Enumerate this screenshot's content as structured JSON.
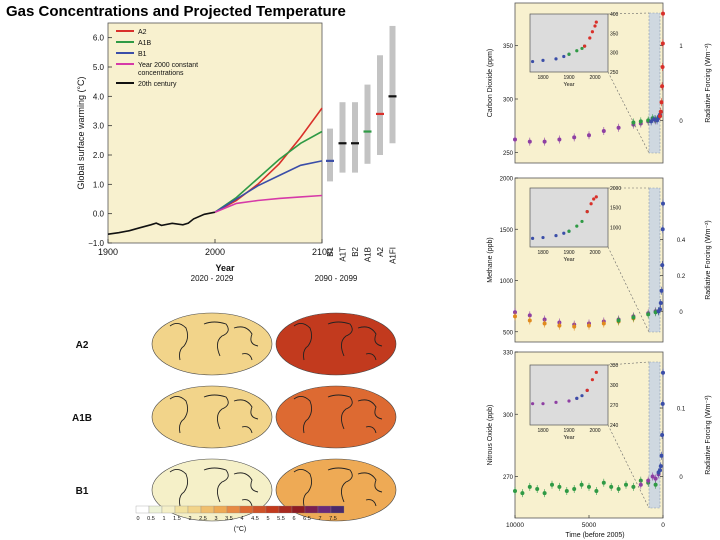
{
  "page_title": "Gas Concentrations and Projected Temperature",
  "colors": {
    "panel_bg": "#f8f1cf",
    "A2": "#d9302a",
    "A1B": "#2f9a45",
    "B1": "#3b4ea8",
    "constant": "#d63aa8",
    "century20": "#111111",
    "inset_bg": "#dcdcdc"
  },
  "chart_data": [
    {
      "type": "line",
      "name": "warming",
      "title": "",
      "xlabel": "Year",
      "ylabel": "Global surface warming (°C)",
      "xlim": [
        1900,
        2100
      ],
      "ylim": [
        -1.0,
        6.5
      ],
      "xticks": [
        1900,
        2000,
        2100
      ],
      "xtick_labels": [
        "1900",
        "2000",
        "2100"
      ],
      "yticks": [
        -1.0,
        0.0,
        1.0,
        2.0,
        3.0,
        4.0,
        5.0,
        6.0
      ],
      "ytick_labels": [
        "−1.0",
        "0.0",
        "1.0",
        "2.0",
        "3.0",
        "4.0",
        "5.0",
        "6.0"
      ],
      "legend": [
        {
          "label": "A2",
          "key": "A2"
        },
        {
          "label": "A1B",
          "key": "A1B"
        },
        {
          "label": "B1",
          "key": "B1"
        },
        {
          "label": "Year 2000 constant",
          "label2": "concentrations",
          "key": "constant"
        },
        {
          "label": "20th century",
          "key": "century20"
        }
      ],
      "series": [
        {
          "name": "20th century",
          "key": "century20",
          "x": [
            1900,
            1910,
            1920,
            1930,
            1940,
            1945,
            1950,
            1960,
            1970,
            1975,
            1980,
            1990,
            2000
          ],
          "y": [
            -0.7,
            -0.65,
            -0.58,
            -0.48,
            -0.38,
            -0.32,
            -0.4,
            -0.33,
            -0.38,
            -0.32,
            -0.18,
            -0.02,
            0.05
          ]
        },
        {
          "name": "A2",
          "key": "A2",
          "x": [
            2000,
            2020,
            2040,
            2060,
            2080,
            2100
          ],
          "y": [
            0.05,
            0.45,
            1.0,
            1.7,
            2.6,
            3.6
          ]
        },
        {
          "name": "A1B",
          "key": "A1B",
          "x": [
            2000,
            2020,
            2040,
            2060,
            2080,
            2100
          ],
          "y": [
            0.05,
            0.55,
            1.2,
            1.85,
            2.4,
            2.8
          ]
        },
        {
          "name": "B1",
          "key": "B1",
          "x": [
            2000,
            2020,
            2040,
            2060,
            2080,
            2100
          ],
          "y": [
            0.05,
            0.5,
            0.95,
            1.3,
            1.65,
            1.8
          ]
        },
        {
          "name": "Year 2000 constant concentrations",
          "key": "constant",
          "x": [
            2000,
            2020,
            2040,
            2060,
            2080,
            2100
          ],
          "y": [
            0.05,
            0.35,
            0.45,
            0.52,
            0.57,
            0.62
          ]
        }
      ],
      "range_bars": [
        {
          "label": "B1",
          "color": "B1",
          "low": 1.1,
          "high": 2.9,
          "best": 1.8
        },
        {
          "label": "A1T",
          "color": "century20",
          "low": 1.4,
          "high": 3.8,
          "best": 2.4
        },
        {
          "label": "B2",
          "color": "century20",
          "low": 1.4,
          "high": 3.8,
          "best": 2.4
        },
        {
          "label": "A1B",
          "color": "A1B",
          "low": 1.7,
          "high": 4.4,
          "best": 2.8
        },
        {
          "label": "A2",
          "color": "A2",
          "low": 2.0,
          "high": 5.4,
          "best": 3.4
        },
        {
          "label": "A1FI",
          "color": "century20",
          "low": 2.4,
          "high": 6.4,
          "best": 4.0
        }
      ]
    },
    {
      "type": "heatmap",
      "name": "maps",
      "column_labels": [
        "2020 - 2029",
        "2090 - 2099"
      ],
      "row_labels": [
        "A2",
        "A1B",
        "B1"
      ],
      "colorbar_ticks": [
        "0",
        "0.5",
        "1",
        "1.5",
        "2",
        "2.5",
        "3",
        "3.5",
        "4",
        "4.5",
        "5",
        "5.5",
        "6",
        "6.5",
        "7",
        "7.5"
      ],
      "colorbar_unit": "(°C)",
      "warming_levels": [
        [
          1.0,
          4.5
        ],
        [
          1.0,
          3.5
        ],
        [
          0.8,
          2.5
        ]
      ]
    },
    {
      "type": "scatter",
      "name": "co2",
      "ylabel": "Carbon Dioxide (ppm)",
      "ylabel_right": "Radiative Forcing (Wm⁻²)",
      "xlim": [
        10000,
        0
      ],
      "ylim": [
        240,
        390
      ],
      "yticks": [
        250,
        300,
        350
      ],
      "ytick_labels": [
        "250",
        "300",
        "350"
      ],
      "rf_ticks": [
        {
          "v": 280,
          "label": "0"
        },
        {
          "v": 350,
          "label": "1"
        }
      ],
      "series_long": [
        {
          "name": "ice-core-a",
          "color": "#8e3fa3",
          "x": [
            10000,
            9000,
            8000,
            7000,
            6000,
            5000,
            4000,
            3000,
            2000,
            1500,
            1000,
            500
          ],
          "y": [
            262,
            260,
            260,
            262,
            264,
            266,
            270,
            273,
            276,
            277,
            279,
            280
          ]
        },
        {
          "name": "ice-core-b",
          "color": "#2f9a45",
          "x": [
            2000,
            1500,
            1000,
            700,
            500
          ],
          "y": [
            278,
            279,
            280,
            282,
            281
          ]
        },
        {
          "name": "ice-core-c",
          "color": "#3b4ea8",
          "x": [
            800,
            600,
            400,
            300,
            250,
            200
          ],
          "y": [
            279,
            281,
            280,
            283,
            284,
            285
          ]
        },
        {
          "name": "recent",
          "color": "#d9302a",
          "x": [
            200,
            150,
            100,
            60,
            30,
            10,
            0
          ],
          "y": [
            284,
            288,
            297,
            312,
            330,
            352,
            380
          ]
        }
      ],
      "inset": {
        "xlim": [
          1750,
          2050
        ],
        "ylim": [
          250,
          400
        ],
        "xticks": [
          1800,
          1900,
          2000
        ],
        "xtick_labels": [
          "1800",
          "1900",
          "2000"
        ],
        "yticks": [
          250,
          300,
          350,
          400
        ],
        "ytick_labels": [
          "250",
          "300",
          "350",
          "400"
        ],
        "xlabel": "Year",
        "series": [
          {
            "name": "inset-ice",
            "color": "#3b4ea8",
            "x": [
              1760,
              1800,
              1850,
              1880,
              1900
            ],
            "y": [
              277,
              280,
              284,
              290,
              296
            ]
          },
          {
            "name": "inset-firn",
            "color": "#2f9a45",
            "x": [
              1900,
              1930,
              1950,
              1960
            ],
            "y": [
              296,
              305,
              311,
              317
            ]
          },
          {
            "name": "inset-recent",
            "color": "#d9302a",
            "x": [
              1960,
              1980,
              1990,
              2000,
              2005
            ],
            "y": [
              317,
              338,
              354,
              369,
              379
            ]
          }
        ]
      }
    },
    {
      "type": "scatter",
      "name": "ch4",
      "ylabel": "Methane (ppb)",
      "ylabel_right": "Radiative Forcing (Wm⁻²)",
      "xlim": [
        10000,
        0
      ],
      "ylim": [
        400,
        2000
      ],
      "yticks": [
        500,
        1000,
        1500,
        2000
      ],
      "ytick_labels": [
        "500",
        "1000",
        "1500",
        "2000"
      ],
      "rf_ticks": [
        {
          "v": 700,
          "label": "0"
        },
        {
          "v": 1050,
          "label": "0.2"
        },
        {
          "v": 1400,
          "label": "0.4"
        }
      ],
      "series_long": [
        {
          "name": "ice-core-a",
          "color": "#8e3fa3",
          "x": [
            10000,
            9000,
            8000,
            7000,
            6000,
            5000,
            4000,
            3000,
            2000,
            1000,
            500
          ],
          "y": [
            690,
            660,
            620,
            590,
            570,
            580,
            600,
            620,
            650,
            680,
            700
          ]
        },
        {
          "name": "ice-core-b",
          "color": "#e08a1e",
          "x": [
            10000,
            9000,
            8000,
            7000,
            6000,
            5000,
            4000,
            3000,
            2000
          ],
          "y": [
            650,
            610,
            580,
            560,
            550,
            560,
            580,
            600,
            630
          ]
        },
        {
          "name": "ice-core-c",
          "color": "#2f9a45",
          "x": [
            3000,
            2000,
            1000,
            500,
            300
          ],
          "y": [
            610,
            640,
            670,
            690,
            700
          ]
        },
        {
          "name": "recent",
          "color": "#3b4ea8",
          "x": [
            300,
            200,
            150,
            100,
            50,
            20,
            0
          ],
          "y": [
            700,
            720,
            780,
            900,
            1150,
            1500,
            1750
          ]
        }
      ],
      "inset": {
        "xlim": [
          1750,
          2050
        ],
        "ylim": [
          500,
          2000
        ],
        "xticks": [
          1800,
          1900,
          2000
        ],
        "xtick_labels": [
          "1800",
          "1900",
          "2000"
        ],
        "yticks": [
          1000,
          1500,
          2000
        ],
        "ytick_labels": [
          "1000",
          "1500",
          "2000"
        ],
        "xlabel": "Year",
        "series": [
          {
            "name": "inset-ice",
            "color": "#3b4ea8",
            "x": [
              1760,
              1800,
              1850,
              1880,
              1900
            ],
            "y": [
              720,
              740,
              790,
              850,
              900
            ]
          },
          {
            "name": "inset-firn",
            "color": "#2f9a45",
            "x": [
              1900,
              1930,
              1950,
              1970
            ],
            "y": [
              900,
              1030,
              1150,
              1400
            ]
          },
          {
            "name": "inset-recent",
            "color": "#d9302a",
            "x": [
              1970,
              1985,
              1995,
              2005
            ],
            "y": [
              1400,
              1600,
              1720,
              1775
            ]
          }
        ]
      }
    },
    {
      "type": "scatter",
      "name": "n2o",
      "ylabel": "Nitrous Oxide (ppb)",
      "ylabel_right": "Radiative Forcing (Wm⁻²)",
      "xlim": [
        10000,
        0
      ],
      "ylim": [
        250,
        330
      ],
      "yticks": [
        270,
        300,
        330
      ],
      "ytick_labels": [
        "270",
        "300",
        "330"
      ],
      "rf_ticks": [
        {
          "v": 270,
          "label": "0"
        },
        {
          "v": 303,
          "label": "0.1"
        }
      ],
      "xticks": [
        10000,
        5000,
        0
      ],
      "xtick_labels": [
        "10000",
        "5000",
        "0"
      ],
      "xlabel": "Time (before 2005)",
      "series_long": [
        {
          "name": "ice-core-a",
          "color": "#2f9a45",
          "x": [
            10000,
            9500,
            9000,
            8500,
            8000,
            7500,
            7000,
            6500,
            6000,
            5500,
            5000,
            4500,
            4000,
            3500,
            3000,
            2500,
            2000,
            1500,
            1000,
            500
          ],
          "y": [
            263,
            262,
            265,
            264,
            262,
            266,
            265,
            263,
            264,
            266,
            265,
            263,
            267,
            265,
            264,
            266,
            265,
            268,
            267,
            266
          ]
        },
        {
          "name": "ice-core-b",
          "color": "#8e3fa3",
          "x": [
            1500,
            1000,
            700,
            500,
            300
          ],
          "y": [
            266,
            268,
            270,
            269,
            271
          ]
        },
        {
          "name": "recent",
          "color": "#3b4ea8",
          "x": [
            300,
            200,
            150,
            100,
            60,
            20,
            0
          ],
          "y": [
            272,
            273,
            275,
            280,
            290,
            305,
            320
          ]
        }
      ],
      "inset": {
        "xlim": [
          1750,
          2050
        ],
        "ylim": [
          240,
          330
        ],
        "xticks": [
          1800,
          1900,
          2000
        ],
        "xtick_labels": [
          "1800",
          "1900",
          "2000"
        ],
        "yticks": [
          240,
          270,
          300,
          330
        ],
        "ytick_labels": [
          "240",
          "270",
          "300",
          "330"
        ],
        "xlabel": "Year",
        "series": [
          {
            "name": "inset-ice",
            "color": "#8e3fa3",
            "x": [
              1760,
              1800,
              1850,
              1900,
              1930
            ],
            "y": [
              272,
              272,
              274,
              276,
              280
            ]
          },
          {
            "name": "inset-firn",
            "color": "#3b4ea8",
            "x": [
              1930,
              1950,
              1970
            ],
            "y": [
              280,
              284,
              292
            ]
          },
          {
            "name": "inset-recent",
            "color": "#d9302a",
            "x": [
              1970,
              1990,
              2005
            ],
            "y": [
              292,
              308,
              319
            ]
          }
        ]
      }
    }
  ]
}
